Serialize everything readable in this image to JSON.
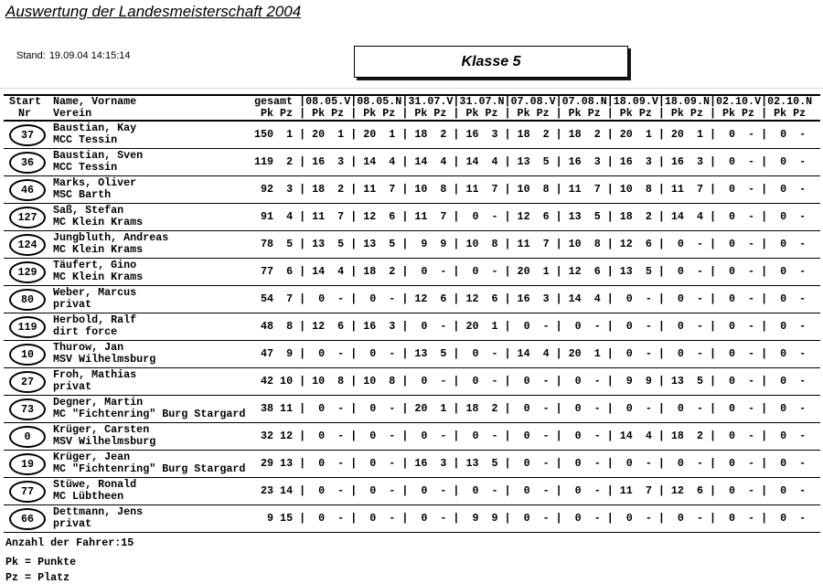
{
  "page": {
    "title": "Auswertung der Landesmeisterschaft 2004",
    "stand_label": "Stand:",
    "stand_value": "19.09.04 14:15:14",
    "klasse": "Klasse 5"
  },
  "table": {
    "header": {
      "start_line1": "Start",
      "start_line2": "Nr",
      "name_line1": "Name, Vorname",
      "name_line2": "Verein",
      "gesamt_label": "gesamt",
      "date_columns": [
        "08.05.V",
        "08.05.N",
        "31.07.V",
        "31.07.N",
        "07.08.V",
        "07.08.N",
        "18.09.V",
        "18.09.N",
        "02.10.V",
        "02.10.N"
      ],
      "pk_label": "Pk",
      "pz_label": "Pz"
    },
    "rows": [
      {
        "start_nr": "37",
        "name": "Baustian, Kay",
        "verein": "MCC Tessin",
        "gesamt": [
          "150",
          "1"
        ],
        "results": [
          [
            "20",
            "1"
          ],
          [
            "20",
            "1"
          ],
          [
            "18",
            "2"
          ],
          [
            "16",
            "3"
          ],
          [
            "18",
            "2"
          ],
          [
            "18",
            "2"
          ],
          [
            "20",
            "1"
          ],
          [
            "20",
            "1"
          ],
          [
            "0",
            "-"
          ],
          [
            "0",
            "-"
          ]
        ]
      },
      {
        "start_nr": "36",
        "name": "Baustian, Sven",
        "verein": "MCC Tessin",
        "gesamt": [
          "119",
          "2"
        ],
        "results": [
          [
            "16",
            "3"
          ],
          [
            "14",
            "4"
          ],
          [
            "14",
            "4"
          ],
          [
            "14",
            "4"
          ],
          [
            "13",
            "5"
          ],
          [
            "16",
            "3"
          ],
          [
            "16",
            "3"
          ],
          [
            "16",
            "3"
          ],
          [
            "0",
            "-"
          ],
          [
            "0",
            "-"
          ]
        ]
      },
      {
        "start_nr": "46",
        "name": "Marks, Oliver",
        "verein": "MSC Barth",
        "gesamt": [
          "92",
          "3"
        ],
        "results": [
          [
            "18",
            "2"
          ],
          [
            "11",
            "7"
          ],
          [
            "10",
            "8"
          ],
          [
            "11",
            "7"
          ],
          [
            "10",
            "8"
          ],
          [
            "11",
            "7"
          ],
          [
            "10",
            "8"
          ],
          [
            "11",
            "7"
          ],
          [
            "0",
            "-"
          ],
          [
            "0",
            "-"
          ]
        ]
      },
      {
        "start_nr": "127",
        "name": "Saß, Stefan",
        "verein": "MC Klein Krams",
        "gesamt": [
          "91",
          "4"
        ],
        "results": [
          [
            "11",
            "7"
          ],
          [
            "12",
            "6"
          ],
          [
            "11",
            "7"
          ],
          [
            "0",
            "-"
          ],
          [
            "12",
            "6"
          ],
          [
            "13",
            "5"
          ],
          [
            "18",
            "2"
          ],
          [
            "14",
            "4"
          ],
          [
            "0",
            "-"
          ],
          [
            "0",
            "-"
          ]
        ]
      },
      {
        "start_nr": "124",
        "name": "Jungbluth, Andreas",
        "verein": "MC Klein Krams",
        "gesamt": [
          "78",
          "5"
        ],
        "results": [
          [
            "13",
            "5"
          ],
          [
            "13",
            "5"
          ],
          [
            "9",
            "9"
          ],
          [
            "10",
            "8"
          ],
          [
            "11",
            "7"
          ],
          [
            "10",
            "8"
          ],
          [
            "12",
            "6"
          ],
          [
            "0",
            "-"
          ],
          [
            "0",
            "-"
          ],
          [
            "0",
            "-"
          ]
        ]
      },
      {
        "start_nr": "129",
        "name": "Täufert, Gino",
        "verein": "MC Klein Krams",
        "gesamt": [
          "77",
          "6"
        ],
        "results": [
          [
            "14",
            "4"
          ],
          [
            "18",
            "2"
          ],
          [
            "0",
            "-"
          ],
          [
            "0",
            "-"
          ],
          [
            "20",
            "1"
          ],
          [
            "12",
            "6"
          ],
          [
            "13",
            "5"
          ],
          [
            "0",
            "-"
          ],
          [
            "0",
            "-"
          ],
          [
            "0",
            "-"
          ]
        ]
      },
      {
        "start_nr": "80",
        "name": "Weber, Marcus",
        "verein": "privat",
        "gesamt": [
          "54",
          "7"
        ],
        "results": [
          [
            "0",
            "-"
          ],
          [
            "0",
            "-"
          ],
          [
            "12",
            "6"
          ],
          [
            "12",
            "6"
          ],
          [
            "16",
            "3"
          ],
          [
            "14",
            "4"
          ],
          [
            "0",
            "-"
          ],
          [
            "0",
            "-"
          ],
          [
            "0",
            "-"
          ],
          [
            "0",
            "-"
          ]
        ]
      },
      {
        "start_nr": "119",
        "name": "Herbold, Ralf",
        "verein": "dirt force",
        "gesamt": [
          "48",
          "8"
        ],
        "results": [
          [
            "12",
            "6"
          ],
          [
            "16",
            "3"
          ],
          [
            "0",
            "-"
          ],
          [
            "20",
            "1"
          ],
          [
            "0",
            "-"
          ],
          [
            "0",
            "-"
          ],
          [
            "0",
            "-"
          ],
          [
            "0",
            "-"
          ],
          [
            "0",
            "-"
          ],
          [
            "0",
            "-"
          ]
        ]
      },
      {
        "start_nr": "10",
        "name": "Thurow, Jan",
        "verein": "MSV Wilhelmsburg",
        "gesamt": [
          "47",
          "9"
        ],
        "results": [
          [
            "0",
            "-"
          ],
          [
            "0",
            "-"
          ],
          [
            "13",
            "5"
          ],
          [
            "0",
            "-"
          ],
          [
            "14",
            "4"
          ],
          [
            "20",
            "1"
          ],
          [
            "0",
            "-"
          ],
          [
            "0",
            "-"
          ],
          [
            "0",
            "-"
          ],
          [
            "0",
            "-"
          ]
        ]
      },
      {
        "start_nr": "27",
        "name": "Froh, Mathias",
        "verein": "privat",
        "gesamt": [
          "42",
          "10"
        ],
        "results": [
          [
            "10",
            "8"
          ],
          [
            "10",
            "8"
          ],
          [
            "0",
            "-"
          ],
          [
            "0",
            "-"
          ],
          [
            "0",
            "-"
          ],
          [
            "0",
            "-"
          ],
          [
            "9",
            "9"
          ],
          [
            "13",
            "5"
          ],
          [
            "0",
            "-"
          ],
          [
            "0",
            "-"
          ]
        ]
      },
      {
        "start_nr": "73",
        "name": "Degner, Martin",
        "verein": "MC \"Fichtenring\" Burg Stargard",
        "gesamt": [
          "38",
          "11"
        ],
        "results": [
          [
            "0",
            "-"
          ],
          [
            "0",
            "-"
          ],
          [
            "20",
            "1"
          ],
          [
            "18",
            "2"
          ],
          [
            "0",
            "-"
          ],
          [
            "0",
            "-"
          ],
          [
            "0",
            "-"
          ],
          [
            "0",
            "-"
          ],
          [
            "0",
            "-"
          ],
          [
            "0",
            "-"
          ]
        ]
      },
      {
        "start_nr": "0",
        "name": "Krüger, Carsten",
        "verein": "MSV Wilhelmsburg",
        "gesamt": [
          "32",
          "12"
        ],
        "results": [
          [
            "0",
            "-"
          ],
          [
            "0",
            "-"
          ],
          [
            "0",
            "-"
          ],
          [
            "0",
            "-"
          ],
          [
            "0",
            "-"
          ],
          [
            "0",
            "-"
          ],
          [
            "14",
            "4"
          ],
          [
            "18",
            "2"
          ],
          [
            "0",
            "-"
          ],
          [
            "0",
            "-"
          ]
        ]
      },
      {
        "start_nr": "19",
        "name": "Krüger, Jean",
        "verein": "MC \"Fichtenring\" Burg Stargard",
        "gesamt": [
          "29",
          "13"
        ],
        "results": [
          [
            "0",
            "-"
          ],
          [
            "0",
            "-"
          ],
          [
            "16",
            "3"
          ],
          [
            "13",
            "5"
          ],
          [
            "0",
            "-"
          ],
          [
            "0",
            "-"
          ],
          [
            "0",
            "-"
          ],
          [
            "0",
            "-"
          ],
          [
            "0",
            "-"
          ],
          [
            "0",
            "-"
          ]
        ]
      },
      {
        "start_nr": "77",
        "name": "Stüwe, Ronald",
        "verein": "MC Lübtheen",
        "gesamt": [
          "23",
          "14"
        ],
        "results": [
          [
            "0",
            "-"
          ],
          [
            "0",
            "-"
          ],
          [
            "0",
            "-"
          ],
          [
            "0",
            "-"
          ],
          [
            "0",
            "-"
          ],
          [
            "0",
            "-"
          ],
          [
            "11",
            "7"
          ],
          [
            "12",
            "6"
          ],
          [
            "0",
            "-"
          ],
          [
            "0",
            "-"
          ]
        ]
      },
      {
        "start_nr": "66",
        "name": "Dettmann, Jens",
        "verein": "privat",
        "gesamt": [
          "9",
          "15"
        ],
        "results": [
          [
            "0",
            "-"
          ],
          [
            "0",
            "-"
          ],
          [
            "0",
            "-"
          ],
          [
            "9",
            "9"
          ],
          [
            "0",
            "-"
          ],
          [
            "0",
            "-"
          ],
          [
            "0",
            "-"
          ],
          [
            "0",
            "-"
          ],
          [
            "0",
            "-"
          ],
          [
            "0",
            "-"
          ]
        ]
      }
    ]
  },
  "footer": {
    "anzahl": "Anzahl der Fahrer:15",
    "legend_pk": "Pk = Punkte",
    "legend_pz": "Pz = Platz"
  }
}
